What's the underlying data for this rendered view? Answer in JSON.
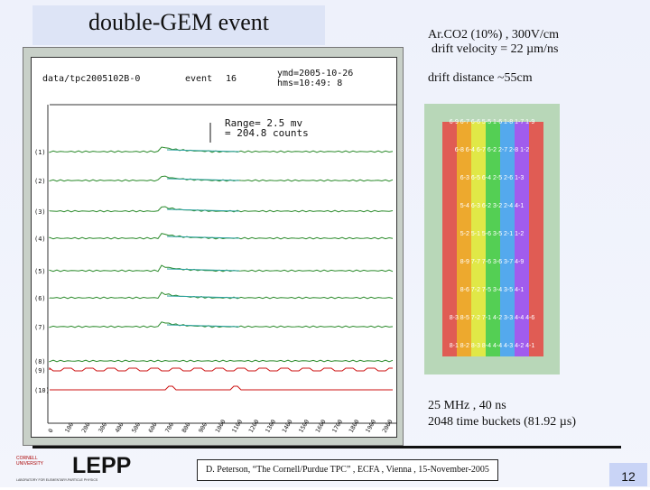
{
  "slide": {
    "title": "double-GEM event",
    "gas_line": "Ar.CO2 (10%) , 300V/cm",
    "drift_velocity_line": "drift velocity = 22 µm/ns",
    "drift_distance_line": "drift distance ~55cm",
    "sampling_line": "25 MHz , 40 ns",
    "buckets_line": "2048 time buckets  (81.92 µs)",
    "footer": "D. Peterson, “The Cornell/Purdue TPC” , ECFA , Vienna , 15-November-2005",
    "page_number": "12",
    "logo_text": "LEPP",
    "cornell_line1": "CORNELL",
    "cornell_line2": "UNIVERSITY",
    "lepp_subtitle": "LABORATORY FOR ELEMENTARY-PARTICLE PHYSICS"
  },
  "scope": {
    "file_label": "data/tpc2005102B-0",
    "event_label": "event",
    "event_value": "16",
    "date_label": "ymd=2005-10-26",
    "time_label": "hms=10:49: 8",
    "range_line1": "Range=    2.5 mv",
    "range_line2": "= 204.8 counts",
    "channel_labels": [
      "(1)",
      "(2)",
      "(3)",
      "(4)",
      "(5)",
      "(6)",
      "(7)",
      "(8)",
      "(9)",
      "(10)"
    ],
    "x_ticks": [
      "0",
      "100",
      "200",
      "300",
      "400",
      "500",
      "600",
      "700",
      "800",
      "900",
      "1000",
      "1100",
      "1200",
      "1300",
      "1400",
      "1500",
      "1600",
      "1700",
      "1800",
      "1900",
      "2000"
    ]
  },
  "pad_rows": [
    "6-9 6-7 6-6 5-5 1-6 1-8 1-7 1-9",
    "6-8 6-4 6-7 6-2 2-7 2-8 1-2",
    "6-3 6-5 6-4 2-5 2-6 1-3",
    "5-4 6-3 6-2 3-2 2-4 4-1",
    "5-2 5-1 5-6 3-5 2-1 1-2",
    "8-9 7-7 7-6 3-6 3-7 4-9",
    "8-6 7-2 7-5 3-4 3-5 4-1",
    "8-3 8-5 7-2 7-1 4-2 3-3 4-4 4-6",
    "8-1 8-2 8-3 8-4 4-4 4-3 4-2 4-1"
  ],
  "colors": {
    "slide_bg": "#eef1fb",
    "trace_green": "#2a8a2a",
    "trace_teal": "#2aa0a0",
    "trace_red": "#cc1111",
    "pad_red": "#e33",
    "pad_orange": "#f90",
    "pad_yellow": "#ee2",
    "pad_green": "#3c3",
    "pad_blue": "#39f",
    "pad_violet": "#93f"
  }
}
